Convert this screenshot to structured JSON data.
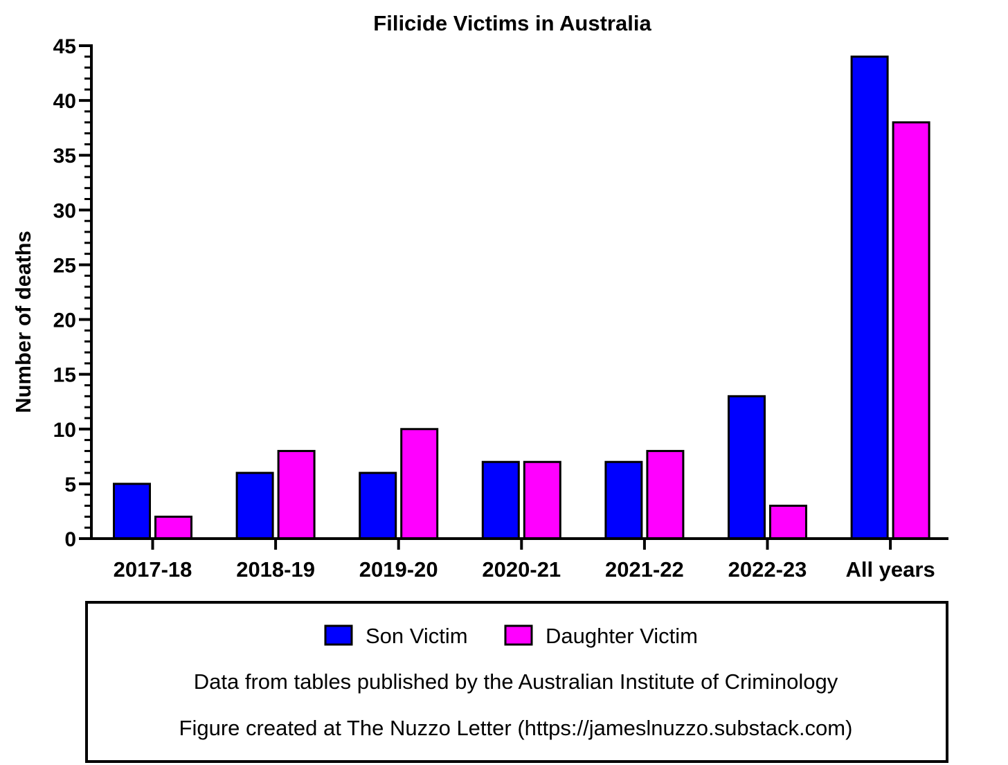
{
  "chart_data": {
    "type": "bar",
    "title": "Filicide Victims in Australia",
    "xlabel": "",
    "ylabel": "Number of deaths",
    "ylim": [
      0,
      45
    ],
    "yticks": [
      0,
      5,
      10,
      15,
      20,
      25,
      30,
      35,
      40,
      45
    ],
    "minor_tick_step": 1,
    "grid": false,
    "legend_position": "bottom",
    "categories": [
      "2017-18",
      "2018-19",
      "2019-20",
      "2020-21",
      "2021-22",
      "2022-23",
      "All years"
    ],
    "series": [
      {
        "name": "Son Victim",
        "color": "#0000ff",
        "values": [
          5,
          6,
          6,
          7,
          7,
          13,
          44
        ]
      },
      {
        "name": "Daughter Victim",
        "color": "#ff00ff",
        "values": [
          2,
          8,
          10,
          7,
          8,
          3,
          38
        ]
      }
    ],
    "notes": [
      "Data from tables published by the Australian Institute of Criminology",
      "Figure created at The Nuzzo Letter (https://jameslnuzzo.substack.com)"
    ]
  }
}
